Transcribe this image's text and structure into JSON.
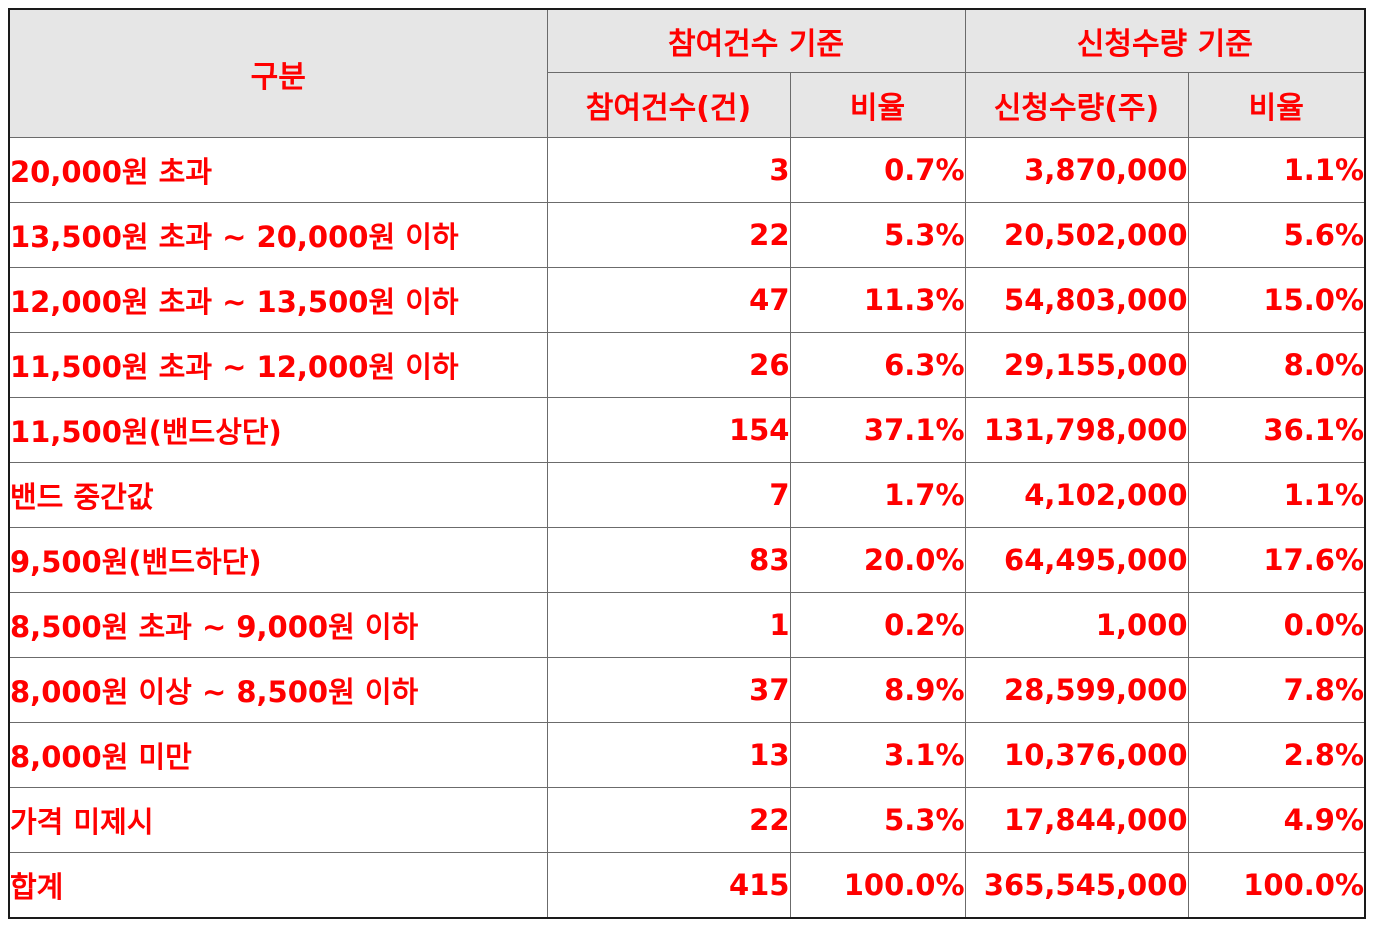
{
  "headers": {
    "category": "구분",
    "group_count": "참여건수 기준",
    "group_qty": "신청수량 기준",
    "count": "참여건수(건)",
    "count_ratio": "비율",
    "qty": "신청수량(주)",
    "qty_ratio": "비율"
  },
  "rows": [
    {
      "label": "20,000원 초과",
      "count": "3",
      "count_ratio": "0.7%",
      "qty": "3,870,000",
      "qty_ratio": "1.1%"
    },
    {
      "label": "13,500원 초과 ~ 20,000원 이하",
      "count": "22",
      "count_ratio": "5.3%",
      "qty": "20,502,000",
      "qty_ratio": "5.6%"
    },
    {
      "label": "12,000원 초과 ~ 13,500원 이하",
      "count": "47",
      "count_ratio": "11.3%",
      "qty": "54,803,000",
      "qty_ratio": "15.0%"
    },
    {
      "label": "11,500원 초과 ~ 12,000원 이하",
      "count": "26",
      "count_ratio": "6.3%",
      "qty": "29,155,000",
      "qty_ratio": "8.0%"
    },
    {
      "label": "11,500원(밴드상단)",
      "count": "154",
      "count_ratio": "37.1%",
      "qty": "131,798,000",
      "qty_ratio": "36.1%"
    },
    {
      "label": "밴드 중간값",
      "count": "7",
      "count_ratio": "1.7%",
      "qty": "4,102,000",
      "qty_ratio": "1.1%"
    },
    {
      "label": "9,500원(밴드하단)",
      "count": "83",
      "count_ratio": "20.0%",
      "qty": "64,495,000",
      "qty_ratio": "17.6%"
    },
    {
      "label": "8,500원 초과 ~ 9,000원 이하",
      "count": "1",
      "count_ratio": "0.2%",
      "qty": "1,000",
      "qty_ratio": "0.0%"
    },
    {
      "label": "8,000원 이상 ~ 8,500원 이하",
      "count": "37",
      "count_ratio": "8.9%",
      "qty": "28,599,000",
      "qty_ratio": "7.8%"
    },
    {
      "label": "8,000원 미만",
      "count": "13",
      "count_ratio": "3.1%",
      "qty": "10,376,000",
      "qty_ratio": "2.8%"
    },
    {
      "label": "가격 미제시",
      "count": "22",
      "count_ratio": "5.3%",
      "qty": "17,844,000",
      "qty_ratio": "4.9%"
    },
    {
      "label": "합계",
      "count": "415",
      "count_ratio": "100.0%",
      "qty": "365,545,000",
      "qty_ratio": "100.0%"
    }
  ],
  "colors": {
    "text": "#ff0000",
    "header_bg": "#e6e6e6",
    "border": "#6b6b6b"
  }
}
